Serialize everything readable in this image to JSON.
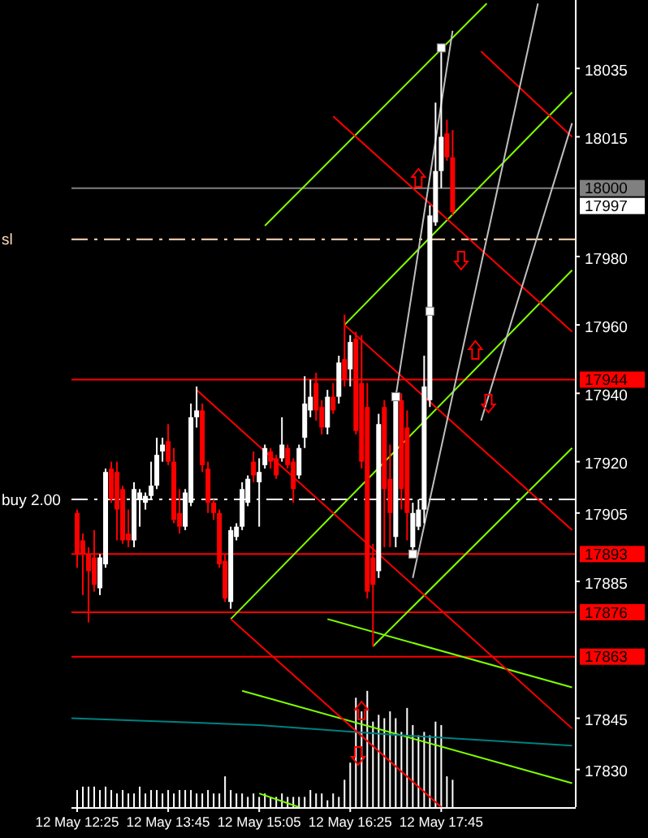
{
  "chart_data": {
    "type": "candlestick",
    "categories": [
      null,
      "12 May 12:25",
      null,
      null,
      null,
      null,
      null,
      null,
      null,
      null,
      null,
      null,
      null,
      null,
      null,
      null,
      null,
      "12 May 13:45",
      null,
      null,
      null,
      null,
      null,
      null,
      null,
      null,
      null,
      null,
      null,
      null,
      null,
      null,
      null,
      "12 May 15:05",
      null,
      null,
      null,
      null,
      null,
      null,
      null,
      null,
      null,
      null,
      null,
      null,
      null,
      null,
      null,
      "12 May 16:25",
      null,
      null,
      null,
      null,
      null,
      null,
      null,
      null,
      null,
      null,
      null,
      null,
      null,
      null,
      null,
      "12 May 17:45",
      null,
      null,
      null,
      null,
      null,
      null,
      null,
      null,
      null,
      null,
      null,
      null,
      null,
      null,
      null,
      null,
      null,
      null,
      null,
      null,
      null,
      null,
      null
    ],
    "ohlc": [
      null,
      [
        17905,
        17906,
        17889,
        17893
      ],
      [
        17897,
        17899,
        17881,
        17893
      ],
      [
        17893,
        17895,
        17873,
        17888
      ],
      [
        17892,
        17900,
        17882,
        17884
      ],
      [
        17883,
        17893,
        17881,
        17892
      ],
      [
        17890,
        17918,
        17889,
        17917
      ],
      [
        17918,
        17920,
        17908,
        17909
      ],
      [
        17917,
        17920,
        17897,
        17906
      ],
      [
        17912,
        17913,
        17896,
        17897
      ],
      [
        17899,
        17906,
        17895,
        17897
      ],
      [
        17897,
        17914,
        17895,
        17912
      ],
      [
        17909,
        17912,
        17901,
        17911
      ],
      [
        17908,
        17911,
        17906,
        17910
      ],
      [
        17910,
        17920,
        17909,
        17913
      ],
      [
        17913,
        17927,
        17912,
        17922
      ],
      [
        17923,
        17927,
        17920,
        17925
      ],
      [
        17926,
        17931,
        17919,
        17920
      ],
      [
        17920,
        17924,
        17902,
        17903
      ],
      [
        17905,
        17912,
        17899,
        17901
      ],
      [
        17901,
        17912,
        17900,
        17911
      ],
      [
        17908,
        17937,
        17907,
        17933
      ],
      [
        17933,
        17942,
        17930,
        17935
      ],
      [
        17935,
        17937,
        17917,
        17919
      ],
      [
        17918,
        17920,
        17905,
        17908
      ],
      [
        17908,
        17909,
        17903,
        17905
      ],
      [
        17905,
        17906,
        17889,
        17890
      ],
      [
        17891,
        17893,
        17879,
        17880
      ],
      [
        17879,
        17901,
        17877,
        17900
      ],
      [
        17898,
        17902,
        17897,
        17901
      ],
      [
        17901,
        17914,
        17900,
        17912
      ],
      [
        17908,
        17916,
        17907,
        17915
      ],
      [
        17920,
        17923,
        17914,
        17916
      ],
      [
        17914,
        17921,
        17901,
        17917
      ],
      [
        17919,
        17925,
        17918,
        17924
      ],
      [
        17923,
        17924,
        17918,
        17920
      ],
      [
        17921,
        17922,
        17915,
        17916
      ],
      [
        17921,
        17933,
        17920,
        17925
      ],
      [
        17924,
        17925,
        17918,
        17919
      ],
      [
        17920,
        17921,
        17908,
        17912
      ],
      [
        17916,
        17925,
        17915,
        17924
      ],
      [
        17927,
        17945,
        17924,
        17937
      ],
      [
        17935,
        17944,
        17933,
        17939
      ],
      [
        17943,
        17946,
        17932,
        17935
      ],
      [
        17936,
        17938,
        17928,
        17930
      ],
      [
        17930,
        17941,
        17928,
        17939
      ],
      [
        17939,
        17943,
        17934,
        17935
      ],
      [
        17939,
        17951,
        17937,
        17949
      ],
      [
        17950,
        17963,
        17942,
        17944
      ],
      [
        17947,
        17957,
        17942,
        17955
      ],
      [
        17956,
        17958,
        17928,
        17929
      ],
      [
        17943,
        17957,
        17918,
        17920
      ],
      [
        17936,
        17943,
        17880,
        17882
      ],
      [
        17892,
        17896,
        17866,
        17884
      ],
      [
        17888,
        17934,
        17886,
        17931
      ],
      [
        17936,
        17938,
        17895,
        17912
      ],
      [
        17915,
        17925,
        17895,
        17905
      ],
      [
        17898,
        17939,
        17895,
        17938
      ],
      [
        17938,
        17940,
        17906,
        17912
      ],
      [
        17930,
        17935,
        17897,
        17905
      ],
      [
        17895,
        17908,
        17893,
        17905
      ],
      [
        17901,
        17909,
        17900,
        17906
      ],
      [
        17906,
        17951,
        17902,
        17942
      ],
      [
        17938,
        17995,
        17936,
        17992
      ],
      [
        17990,
        18025,
        17989,
        18005
      ],
      [
        18005,
        18041,
        18000,
        18015
      ],
      [
        18016,
        18020,
        18008,
        18009
      ],
      [
        18009,
        18017,
        17992,
        17993
      ],
      null,
      null,
      null,
      null,
      null,
      null,
      null,
      null,
      null,
      null,
      null,
      null,
      null,
      null,
      null,
      null,
      null,
      null,
      null,
      null,
      null
    ],
    "series": [
      {
        "type": "bar",
        "color": "#ffffff",
        "values": [
          null,
          17824,
          17825,
          17825,
          17825,
          17824,
          17825,
          17824,
          17823,
          17824,
          17823,
          17823,
          17825,
          17823,
          17824,
          17824,
          17823,
          17824,
          17823,
          17824,
          17824,
          17824,
          17823,
          17823,
          17824,
          17823,
          17823,
          17828,
          17824,
          17823,
          17823,
          17822,
          17823,
          17822,
          17823,
          17822,
          17822,
          17823,
          17822,
          17822,
          17822,
          17822,
          17824,
          17823,
          17823,
          17821,
          17823,
          17822,
          17827,
          17832,
          17851,
          17847,
          17853,
          17844,
          17846,
          17845,
          17847,
          17845,
          17841,
          17848,
          17843,
          17840,
          17841,
          17840,
          17844,
          17843,
          17828,
          17827,
          null,
          null,
          null,
          null,
          null,
          null,
          null,
          null,
          null,
          null,
          null,
          null,
          null,
          null,
          null,
          null,
          null,
          null,
          null,
          null,
          null
        ]
      },
      {
        "type": "line",
        "color": "#7fff00",
        "values": [
          null,
          null,
          null,
          null,
          null,
          null,
          null,
          null,
          null,
          null,
          null,
          null,
          null,
          null,
          null,
          null,
          null,
          null,
          null,
          null,
          null,
          null,
          null,
          null,
          null,
          null,
          null,
          null,
          null,
          null,
          null,
          null,
          null,
          null,
          17989,
          null,
          null,
          null,
          null,
          null,
          null,
          null,
          null,
          null,
          null,
          null,
          null,
          null,
          null,
          null,
          null,
          null,
          null,
          null,
          null,
          null,
          null,
          null,
          null,
          null,
          null,
          null,
          null,
          null,
          null,
          null,
          null,
          null,
          null,
          null,
          null,
          null,
          null,
          18054,
          null,
          null,
          null,
          null,
          null,
          null,
          null,
          null,
          null,
          null,
          null,
          null,
          null,
          null,
          null
        ]
      },
      {
        "type": "line",
        "color": "#7fff00",
        "values": [
          null,
          null,
          null,
          null,
          null,
          null,
          null,
          null,
          null,
          null,
          null,
          null,
          null,
          null,
          null,
          null,
          null,
          null,
          null,
          null,
          null,
          null,
          null,
          null,
          null,
          null,
          null,
          null,
          null,
          null,
          null,
          null,
          null,
          null,
          null,
          null,
          null,
          null,
          null,
          null,
          null,
          null,
          null,
          null,
          null,
          null,
          null,
          null,
          17960,
          null,
          null,
          null,
          null,
          null,
          null,
          null,
          null,
          null,
          null,
          null,
          null,
          null,
          null,
          null,
          null,
          null,
          null,
          null,
          null,
          null,
          null,
          null,
          null,
          null,
          null,
          null,
          null,
          null,
          null,
          null,
          null,
          null,
          null,
          null,
          null,
          null,
          null,
          null,
          18028
        ]
      },
      {
        "type": "line",
        "color": "#7fff00",
        "values": [
          null,
          null,
          null,
          null,
          null,
          null,
          null,
          null,
          null,
          null,
          null,
          null,
          null,
          null,
          null,
          null,
          null,
          null,
          null,
          null,
          null,
          null,
          null,
          null,
          null,
          null,
          null,
          null,
          17874,
          null,
          null,
          null,
          null,
          null,
          null,
          null,
          null,
          null,
          null,
          null,
          null,
          null,
          null,
          null,
          null,
          null,
          null,
          null,
          null,
          null,
          null,
          null,
          null,
          null,
          null,
          null,
          null,
          null,
          null,
          null,
          null,
          null,
          null,
          null,
          null,
          null,
          null,
          null,
          null,
          null,
          null,
          null,
          null,
          null,
          null,
          null,
          null,
          null,
          null,
          null,
          null,
          null,
          null,
          null,
          null,
          null,
          null,
          null,
          17976
        ]
      },
      {
        "type": "line",
        "color": "#7fff00",
        "values": [
          null,
          null,
          null,
          null,
          null,
          null,
          null,
          null,
          null,
          null,
          null,
          null,
          null,
          null,
          null,
          null,
          null,
          null,
          null,
          null,
          null,
          null,
          null,
          null,
          null,
          null,
          null,
          null,
          null,
          null,
          null,
          null,
          null,
          null,
          null,
          null,
          null,
          null,
          null,
          null,
          null,
          null,
          null,
          null,
          null,
          null,
          null,
          null,
          null,
          null,
          null,
          null,
          null,
          17866,
          null,
          null,
          null,
          null,
          null,
          null,
          null,
          null,
          null,
          null,
          null,
          null,
          null,
          null,
          null,
          null,
          null,
          null,
          null,
          null,
          null,
          null,
          null,
          null,
          null,
          null,
          null,
          null,
          null,
          null,
          null,
          null,
          null,
          null,
          17924
        ]
      },
      {
        "type": "line",
        "color": "#7fff00",
        "values": [
          null,
          null,
          null,
          null,
          null,
          null,
          null,
          null,
          null,
          null,
          null,
          null,
          null,
          null,
          null,
          null,
          null,
          null,
          null,
          null,
          null,
          null,
          null,
          null,
          null,
          null,
          null,
          null,
          null,
          null,
          null,
          null,
          null,
          null,
          null,
          null,
          null,
          null,
          null,
          null,
          null,
          null,
          null,
          null,
          null,
          17874,
          null,
          null,
          null,
          null,
          null,
          null,
          null,
          null,
          null,
          null,
          null,
          null,
          null,
          null,
          null,
          null,
          null,
          null,
          null,
          null,
          null,
          null,
          null,
          null,
          null,
          null,
          null,
          null,
          null,
          null,
          null,
          null,
          null,
          null,
          null,
          null,
          null,
          null,
          null,
          null,
          null,
          null,
          17854
        ]
      },
      {
        "type": "line",
        "color": "#7fff00",
        "values": [
          null,
          null,
          null,
          null,
          null,
          null,
          null,
          null,
          null,
          null,
          null,
          null,
          null,
          null,
          null,
          null,
          null,
          null,
          null,
          null,
          null,
          null,
          null,
          null,
          null,
          null,
          null,
          null,
          null,
          null,
          17853,
          null,
          null,
          null,
          null,
          null,
          null,
          null,
          null,
          null,
          null,
          null,
          null,
          null,
          null,
          null,
          null,
          null,
          null,
          null,
          null,
          null,
          null,
          null,
          null,
          null,
          null,
          null,
          null,
          null,
          null,
          null,
          null,
          null,
          null,
          null,
          null,
          null,
          null,
          null,
          null,
          null,
          null,
          null,
          null,
          null,
          null,
          null,
          null,
          null,
          null,
          null,
          null,
          null,
          null,
          null,
          null,
          null,
          17826
        ]
      },
      {
        "type": "line",
        "color": "#7fff00",
        "values": [
          null,
          null,
          null,
          null,
          null,
          null,
          null,
          null,
          null,
          null,
          null,
          null,
          null,
          null,
          null,
          null,
          null,
          null,
          null,
          null,
          null,
          null,
          null,
          null,
          null,
          null,
          null,
          null,
          null,
          null,
          null,
          null,
          null,
          17823,
          null,
          null,
          null,
          null,
          null,
          null,
          17819,
          null,
          null,
          null,
          null,
          null,
          null,
          null,
          null,
          null,
          null,
          null,
          null,
          null,
          null,
          null,
          null,
          null,
          null,
          null,
          null,
          null,
          null,
          null,
          null,
          null,
          null,
          null,
          null,
          null,
          null,
          null,
          null,
          null,
          null,
          null,
          null,
          null,
          null,
          null,
          null,
          null,
          null,
          null,
          null,
          null,
          null,
          null,
          null
        ]
      },
      {
        "type": "line",
        "color": "#008080",
        "values": [
          17845,
          null,
          null,
          null,
          null,
          null,
          null,
          null,
          null,
          null,
          null,
          null,
          null,
          null,
          null,
          null,
          null,
          null,
          null,
          null,
          null,
          null,
          null,
          null,
          null,
          null,
          null,
          null,
          null,
          null,
          null,
          null,
          null,
          17843,
          null,
          null,
          null,
          null,
          null,
          null,
          null,
          null,
          null,
          null,
          null,
          null,
          null,
          null,
          null,
          null,
          null,
          null,
          null,
          null,
          null,
          null,
          null,
          null,
          17840,
          null,
          null,
          null,
          null,
          null,
          null,
          null,
          null,
          null,
          null,
          null,
          null,
          null,
          null,
          null,
          null,
          null,
          null,
          null,
          null,
          null,
          null,
          null,
          null,
          null,
          null,
          null,
          null,
          null,
          17837
        ]
      },
      {
        "type": "line",
        "color": "#ff0000",
        "values": [
          null,
          null,
          null,
          null,
          null,
          null,
          null,
          null,
          null,
          null,
          null,
          null,
          null,
          null,
          null,
          null,
          null,
          null,
          null,
          null,
          null,
          null,
          null,
          null,
          null,
          null,
          null,
          null,
          null,
          null,
          null,
          null,
          null,
          null,
          null,
          null,
          null,
          null,
          null,
          null,
          null,
          null,
          null,
          null,
          null,
          null,
          18021,
          null,
          null,
          null,
          null,
          null,
          null,
          null,
          null,
          null,
          null,
          null,
          null,
          null,
          null,
          null,
          null,
          null,
          null,
          null,
          null,
          null,
          null,
          null,
          null,
          null,
          null,
          null,
          null,
          null,
          null,
          null,
          null,
          null,
          null,
          null,
          null,
          null,
          null,
          null,
          null,
          null,
          17958
        ]
      },
      {
        "type": "line",
        "color": "#ff0000",
        "values": [
          null,
          null,
          null,
          null,
          null,
          null,
          null,
          null,
          null,
          null,
          null,
          null,
          null,
          null,
          null,
          null,
          null,
          null,
          null,
          null,
          null,
          null,
          null,
          null,
          null,
          null,
          null,
          null,
          null,
          null,
          null,
          null,
          null,
          null,
          null,
          null,
          null,
          null,
          null,
          null,
          null,
          null,
          null,
          null,
          null,
          null,
          null,
          null,
          null,
          null,
          null,
          null,
          null,
          null,
          null,
          null,
          null,
          null,
          null,
          null,
          null,
          null,
          null,
          null,
          null,
          null,
          null,
          null,
          null,
          null,
          null,
          null,
          18040,
          null,
          null,
          null,
          null,
          null,
          null,
          null,
          null,
          null,
          null,
          null,
          null,
          null,
          null,
          null,
          18015
        ]
      },
      {
        "type": "line",
        "color": "#ff0000",
        "values": [
          null,
          null,
          null,
          null,
          null,
          null,
          null,
          null,
          null,
          null,
          null,
          null,
          null,
          null,
          null,
          null,
          null,
          null,
          null,
          null,
          null,
          null,
          null,
          null,
          null,
          null,
          null,
          null,
          null,
          null,
          null,
          null,
          null,
          null,
          null,
          null,
          null,
          null,
          null,
          null,
          null,
          null,
          null,
          null,
          null,
          null,
          null,
          null,
          17960,
          null,
          null,
          null,
          null,
          null,
          null,
          null,
          null,
          null,
          null,
          null,
          null,
          null,
          null,
          null,
          null,
          null,
          null,
          null,
          null,
          null,
          null,
          null,
          null,
          null,
          null,
          null,
          null,
          null,
          null,
          null,
          null,
          null,
          null,
          null,
          null,
          null,
          null,
          null,
          17900
        ]
      },
      {
        "type": "line",
        "color": "#ff0000",
        "values": [
          null,
          null,
          null,
          null,
          null,
          null,
          null,
          null,
          null,
          null,
          null,
          null,
          null,
          null,
          null,
          null,
          null,
          null,
          null,
          null,
          null,
          null,
          17941,
          null,
          null,
          null,
          null,
          null,
          null,
          null,
          null,
          null,
          null,
          null,
          null,
          null,
          null,
          null,
          null,
          null,
          null,
          null,
          null,
          null,
          null,
          null,
          null,
          null,
          null,
          null,
          null,
          null,
          null,
          null,
          null,
          null,
          null,
          null,
          null,
          null,
          null,
          null,
          null,
          null,
          null,
          null,
          null,
          null,
          null,
          null,
          null,
          null,
          null,
          null,
          null,
          null,
          null,
          null,
          null,
          null,
          null,
          null,
          null,
          null,
          null,
          null,
          null,
          null,
          17842
        ]
      },
      {
        "type": "line",
        "color": "#ff0000",
        "values": [
          null,
          null,
          null,
          null,
          null,
          null,
          null,
          null,
          null,
          null,
          null,
          null,
          null,
          null,
          null,
          null,
          null,
          null,
          null,
          null,
          null,
          null,
          null,
          null,
          null,
          null,
          null,
          null,
          17874,
          null,
          null,
          null,
          null,
          null,
          null,
          null,
          null,
          null,
          null,
          null,
          null,
          null,
          null,
          null,
          null,
          null,
          null,
          null,
          null,
          null,
          null,
          null,
          null,
          null,
          null,
          null,
          null,
          null,
          null,
          null,
          null,
          null,
          null,
          null,
          null,
          17819,
          null,
          null,
          null,
          null,
          null,
          null,
          null,
          null,
          null,
          null,
          null,
          null,
          null,
          null,
          null,
          null,
          null,
          null,
          null,
          null,
          null,
          null,
          null
        ]
      },
      {
        "type": "line",
        "color": "#c0c0c0",
        "values": [
          null,
          null,
          null,
          null,
          null,
          null,
          null,
          null,
          null,
          null,
          null,
          null,
          null,
          null,
          null,
          null,
          null,
          null,
          null,
          null,
          null,
          null,
          null,
          null,
          null,
          null,
          null,
          null,
          null,
          null,
          null,
          null,
          null,
          null,
          null,
          null,
          null,
          null,
          null,
          null,
          null,
          null,
          null,
          null,
          null,
          null,
          null,
          null,
          null,
          null,
          null,
          null,
          null,
          null,
          null,
          null,
          null,
          17939,
          null,
          null,
          null,
          null,
          null,
          null,
          null,
          null,
          null,
          18046,
          null,
          null,
          null,
          null,
          null,
          null,
          null,
          null,
          null,
          null,
          null,
          null,
          null,
          null,
          null,
          null,
          null,
          null,
          null,
          null,
          null
        ]
      },
      {
        "type": "line",
        "color": "#c0c0c0",
        "values": [
          null,
          null,
          null,
          null,
          null,
          null,
          null,
          null,
          null,
          null,
          null,
          null,
          null,
          null,
          null,
          null,
          null,
          null,
          null,
          null,
          null,
          null,
          null,
          null,
          null,
          null,
          null,
          null,
          null,
          null,
          null,
          null,
          null,
          null,
          null,
          null,
          null,
          null,
          null,
          null,
          null,
          null,
          null,
          null,
          null,
          null,
          null,
          null,
          null,
          null,
          null,
          null,
          null,
          null,
          null,
          null,
          null,
          null,
          null,
          null,
          17886,
          null,
          null,
          null,
          null,
          null,
          null,
          null,
          null,
          null,
          null,
          null,
          null,
          null,
          null,
          null,
          null,
          null,
          null,
          null,
          null,
          null,
          18054,
          null,
          null,
          null,
          null,
          null,
          null
        ]
      },
      {
        "type": "line",
        "color": "#c0c0c0",
        "values": [
          null,
          null,
          null,
          null,
          null,
          null,
          null,
          null,
          null,
          null,
          null,
          null,
          null,
          null,
          null,
          null,
          null,
          null,
          null,
          null,
          null,
          null,
          null,
          null,
          null,
          null,
          null,
          null,
          null,
          null,
          null,
          null,
          null,
          null,
          null,
          null,
          null,
          null,
          null,
          null,
          null,
          null,
          null,
          null,
          null,
          null,
          null,
          null,
          null,
          null,
          null,
          null,
          null,
          null,
          null,
          null,
          null,
          null,
          null,
          null,
          null,
          null,
          null,
          null,
          null,
          null,
          null,
          null,
          null,
          null,
          null,
          null,
          17932,
          null,
          null,
          null,
          null,
          null,
          null,
          null,
          null,
          null,
          null,
          null,
          null,
          null,
          null,
          null,
          18019
        ]
      },
      {
        "type": "scatter",
        "color": "#ffffff",
        "marker": "square",
        "values": [
          null,
          null,
          null,
          null,
          null,
          null,
          null,
          null,
          null,
          null,
          null,
          null,
          null,
          null,
          null,
          null,
          null,
          null,
          null,
          null,
          null,
          null,
          null,
          null,
          null,
          null,
          null,
          null,
          null,
          null,
          null,
          null,
          null,
          null,
          null,
          null,
          null,
          null,
          null,
          null,
          null,
          null,
          null,
          null,
          null,
          null,
          null,
          null,
          null,
          null,
          null,
          null,
          null,
          null,
          null,
          null,
          null,
          17939,
          null,
          null,
          17893,
          null,
          null,
          17964,
          null,
          18041,
          null,
          null,
          null,
          null,
          null,
          null,
          null,
          null,
          null,
          null,
          null,
          null,
          null,
          null,
          null,
          null,
          null,
          null,
          null,
          null,
          null,
          null,
          null
        ]
      }
    ],
    "ylim": [
      17819,
      18055
    ],
    "yticks": [
      18035,
      18015,
      17980,
      17960,
      17940,
      17920,
      17905,
      17885,
      17845,
      17830
    ],
    "ref_lines": [
      {
        "axis": "y",
        "value": 18000,
        "label": "18000",
        "color": "#808080",
        "line_style": "solid"
      },
      {
        "axis": "y",
        "value": 17944,
        "label": "17944",
        "color": "#ff0000",
        "line_style": "solid"
      },
      {
        "axis": "y",
        "value": 17893,
        "label": "17893",
        "color": "#ff0000",
        "line_style": "solid"
      },
      {
        "axis": "y",
        "value": 17876,
        "label": "17876",
        "color": "#ff0000",
        "line_style": "solid"
      },
      {
        "axis": "y",
        "value": 17863,
        "label": "17863",
        "color": "#ff0000",
        "line_style": "solid"
      },
      {
        "axis": "y",
        "value": 17985,
        "label": "sl",
        "color": "#ffdab9",
        "line_style": "dashed"
      },
      {
        "axis": "y",
        "value": 17909,
        "label": "buy 2.00",
        "color": "#ffffff",
        "line_style": "dashed"
      }
    ],
    "annotations": [
      "17997"
    ]
  }
}
